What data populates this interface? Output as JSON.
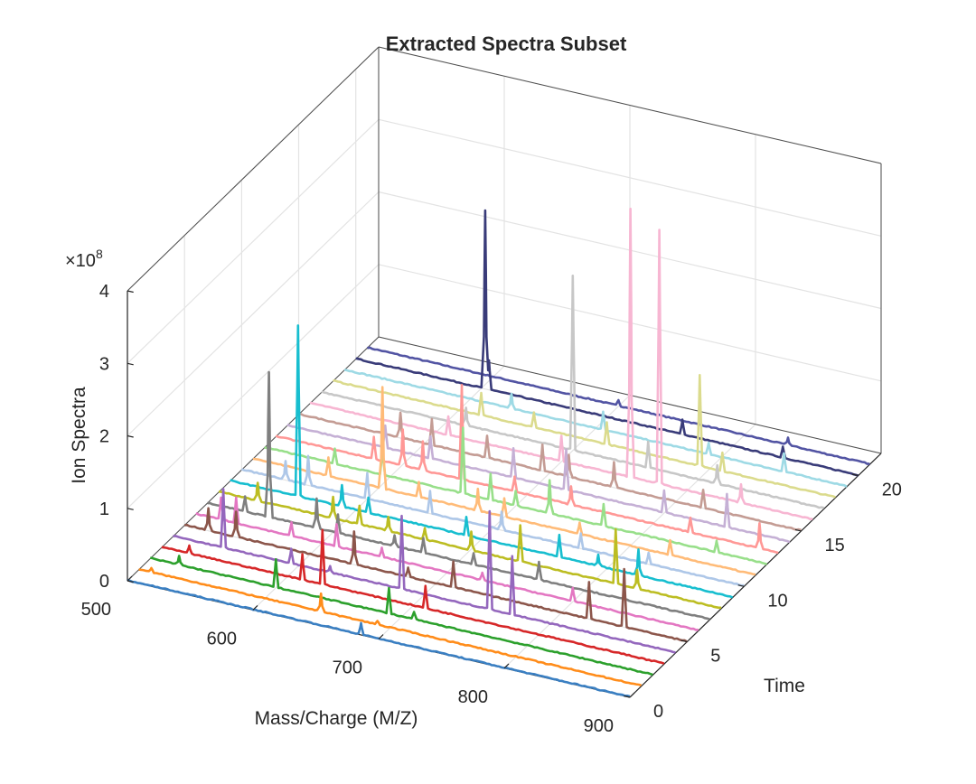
{
  "chart_data": {
    "type": "line",
    "title": "Extracted Spectra Subset",
    "xlabel": "Mass/Charge (M/Z)",
    "ylabel": "Time",
    "zlabel": "Ion Spectra",
    "exponent_label": "×10",
    "exponent_power": "8",
    "xlim": [
      500,
      900
    ],
    "ylim": [
      0,
      22
    ],
    "zlim": [
      0,
      4
    ],
    "x_ticks": [
      "500",
      "600",
      "700",
      "800",
      "900"
    ],
    "y_ticks": [
      "0",
      "5",
      "10",
      "15",
      "20"
    ],
    "z_ticks": [
      "0",
      "1",
      "2",
      "3",
      "4"
    ],
    "grid": true,
    "series": [
      {
        "time": 0,
        "color": "#3a7fc2",
        "peaks": [
          [
            686,
            0.15
          ]
        ]
      },
      {
        "time": 1,
        "color": "#ff8c1a",
        "peaks": [
          [
            510,
            0.05
          ],
          [
            645,
            0.25
          ],
          [
            690,
            0.05
          ]
        ]
      },
      {
        "time": 2,
        "color": "#2ca02c",
        "peaks": [
          [
            523,
            0.12
          ],
          [
            600,
            0.38
          ],
          [
            690,
            0.35
          ],
          [
            710,
            0.1
          ]
        ]
      },
      {
        "time": 3,
        "color": "#d62728",
        "peaks": [
          [
            522,
            0.1
          ],
          [
            612,
            0.35
          ],
          [
            628,
            0.75
          ],
          [
            710,
            0.3
          ]
        ]
      },
      {
        "time": 4,
        "color": "#9467bd",
        "peaks": [
          [
            540,
            0.8
          ],
          [
            594,
            0.2
          ],
          [
            625,
            0.08
          ],
          [
            682,
            1.0
          ],
          [
            752,
            1.35
          ],
          [
            770,
            0.8
          ]
        ]
      },
      {
        "time": 5,
        "color": "#8c564b",
        "peaks": [
          [
            519,
            0.3
          ],
          [
            541,
            0.35
          ],
          [
            635,
            0.45
          ],
          [
            678,
            0.12
          ],
          [
            714,
            0.35
          ],
          [
            822,
            0.5
          ],
          [
            850,
            0.8
          ]
        ]
      },
      {
        "time": 6,
        "color": "#e377c2",
        "peaks": [
          [
            520,
            0.3
          ],
          [
            532,
            0.35
          ],
          [
            576,
            0.18
          ],
          [
            612,
            0.3
          ],
          [
            648,
            0.12
          ],
          [
            728,
            0.1
          ],
          [
            800,
            0.18
          ]
        ]
      },
      {
        "time": 7,
        "color": "#7f7f7f",
        "peaks": [
          [
            530,
            0.2
          ],
          [
            549,
            2.0
          ],
          [
            587,
            0.4
          ],
          [
            604,
            0.25
          ],
          [
            649,
            0.15
          ],
          [
            672,
            0.2
          ],
          [
            712,
            0.15
          ],
          [
            764,
            0.25
          ]
        ]
      },
      {
        "time": 8,
        "color": "#bcbd22",
        "peaks": [
          [
            531,
            0.25
          ],
          [
            591,
            0.3
          ],
          [
            612,
            0.25
          ],
          [
            635,
            0.2
          ],
          [
            664,
            0.15
          ],
          [
            701,
            0.25
          ],
          [
            740,
            0.5
          ],
          [
            816,
            0.75
          ],
          [
            833,
            0.25
          ]
        ]
      },
      {
        "time": 9,
        "color": "#17becf",
        "peaks": [
          [
            554,
            2.35
          ],
          [
            589,
            0.3
          ],
          [
            610,
            0.2
          ],
          [
            688,
            0.25
          ],
          [
            762,
            0.3
          ],
          [
            793,
            0.15
          ],
          [
            825,
            0.35
          ]
        ]
      },
      {
        "time": 10,
        "color": "#aec7e8",
        "peaks": [
          [
            535,
            0.25
          ],
          [
            553,
            0.4
          ],
          [
            600,
            0.35
          ],
          [
            650,
            0.3
          ],
          [
            707,
            0.25
          ],
          [
            770,
            0.2
          ],
          [
            824,
            0.15
          ]
        ]
      },
      {
        "time": 11,
        "color": "#ffbb78",
        "peaks": [
          [
            560,
            0.25
          ],
          [
            603,
            1.4
          ],
          [
            632,
            0.2
          ],
          [
            679,
            0.3
          ],
          [
            700,
            0.25
          ],
          [
            760,
            0.15
          ],
          [
            832,
            0.2
          ]
        ]
      },
      {
        "time": 12,
        "color": "#98df8a",
        "peaks": [
          [
            556,
            0.2
          ],
          [
            594,
            0.35
          ],
          [
            658,
            0.9
          ],
          [
            680,
            0.35
          ],
          [
            700,
            0.2
          ],
          [
            727,
            0.45
          ],
          [
            770,
            0.3
          ],
          [
            860,
            0.15
          ]
        ]
      },
      {
        "time": 13,
        "color": "#ff9896",
        "peaks": [
          [
            578,
            0.3
          ],
          [
            601,
            0.5
          ],
          [
            617,
            0.4
          ],
          [
            648,
            1.3
          ],
          [
            690,
            0.2
          ],
          [
            735,
            0.25
          ],
          [
            830,
            0.2
          ],
          [
            885,
            0.35
          ]
        ]
      },
      {
        "time": 14,
        "color": "#c5b0d5",
        "peaks": [
          [
            578,
            0.3
          ],
          [
            614,
            0.3
          ],
          [
            680,
            0.4
          ],
          [
            722,
            0.55
          ],
          [
            800,
            0.3
          ],
          [
            850,
            0.45
          ]
        ]
      },
      {
        "time": 15,
        "color": "#c49c94",
        "peaks": [
          [
            581,
            0.35
          ],
          [
            606,
            0.35
          ],
          [
            650,
            0.3
          ],
          [
            694,
            0.35
          ],
          [
            715,
            0.3
          ],
          [
            751,
            0.35
          ],
          [
            822,
            0.25
          ]
        ]
      },
      {
        "time": 16,
        "color": "#f7b6d2",
        "peaks": [
          [
            610,
            0.25
          ],
          [
            700,
            0.35
          ],
          [
            755,
            3.7
          ],
          [
            778,
            3.5
          ],
          [
            843,
            0.25
          ]
        ]
      },
      {
        "time": 17,
        "color": "#c7c7c7",
        "peaks": [
          [
            615,
            0.25
          ],
          [
            700,
            2.4
          ],
          [
            760,
            0.35
          ],
          [
            815,
            0.25
          ]
        ]
      },
      {
        "time": 18,
        "color": "#dbdb8d",
        "peaks": [
          [
            618,
            0.3
          ],
          [
            660,
            0.2
          ],
          [
            718,
            0.3
          ],
          [
            792,
            1.25
          ],
          [
            810,
            0.25
          ]
        ]
      },
      {
        "time": 19,
        "color": "#9edae5",
        "peaks": [
          [
            633,
            0.2
          ],
          [
            706,
            0.25
          ],
          [
            790,
            0.15
          ],
          [
            850,
            0.25
          ]
        ]
      },
      {
        "time": 20,
        "color": "#393b79",
        "peaks": [
          [
            603,
            2.45
          ],
          [
            606,
            0.4
          ],
          [
            760,
            0.2
          ],
          [
            840,
            0.15
          ]
        ]
      },
      {
        "time": 21,
        "color": "#5254a3",
        "peaks": [
          [
            700,
            0.08
          ],
          [
            835,
            0.1
          ]
        ]
      }
    ]
  }
}
